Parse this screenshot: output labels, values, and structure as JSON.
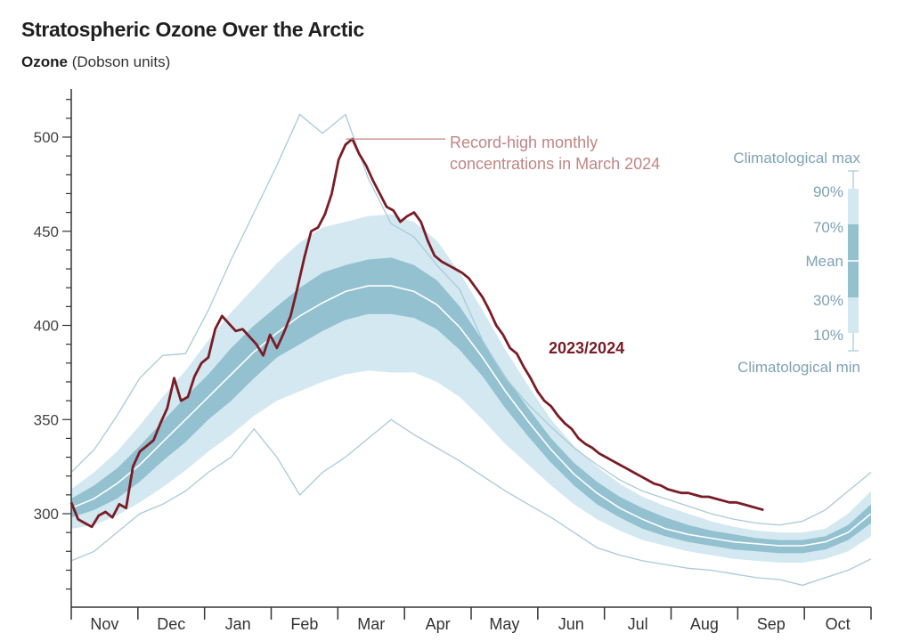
{
  "chart_data": {
    "type": "area",
    "title": "Stratospheric Ozone Over the Arctic",
    "ylabel_bold": "Ozone",
    "ylabel_unit": "(Dobson units)",
    "ylim": [
      255,
      525
    ],
    "y_ticks": [
      300,
      350,
      400,
      450,
      500
    ],
    "categories": [
      "Nov",
      "Dec",
      "Jan",
      "Feb",
      "Mar",
      "Apr",
      "May",
      "Jun",
      "Jul",
      "Aug",
      "Sep",
      "Oct"
    ],
    "x_day_range": [
      0,
      350
    ],
    "legend": {
      "max": "Climatological max",
      "p90": "90%",
      "p70": "70%",
      "mean": "Mean",
      "p30": "30%",
      "p10": "10%",
      "min": "Climatological min"
    },
    "annotation": {
      "line1": "Record-high monthly",
      "line2": "concentrations in March 2024",
      "x": 119,
      "y": 499
    },
    "series_label": "2023/2024",
    "colors": {
      "band_outer": "#d3e8f0",
      "band_inner": "#93c1d0",
      "mean_line": "#ffffff",
      "extreme_line": "#a9cbd8",
      "record_line": "#7a1c26",
      "annotation": "#c08585",
      "axis": "#333333"
    },
    "series": [
      {
        "name": "2023/2024",
        "x": [
          0,
          3,
          6,
          9,
          12,
          15,
          18,
          21,
          24,
          27,
          30,
          33,
          36,
          39,
          42,
          45,
          48,
          51,
          54,
          57,
          60,
          63,
          66,
          69,
          72,
          75,
          78,
          81,
          84,
          87,
          90,
          93,
          96,
          99,
          102,
          105,
          108,
          111,
          114,
          117,
          120,
          123,
          126,
          129,
          132,
          135,
          138,
          141,
          144,
          147,
          150,
          153,
          156,
          159,
          162,
          165,
          168,
          171,
          174,
          177,
          180,
          183,
          186,
          189,
          192,
          195,
          198,
          201,
          204,
          207,
          210,
          213,
          216,
          219,
          222,
          225,
          228,
          231,
          234,
          237,
          240,
          243,
          246,
          249,
          252,
          255,
          258,
          261,
          264,
          267,
          270,
          273,
          276,
          279,
          282,
          285,
          288,
          291,
          294,
          297,
          300,
          303
        ],
        "values": [
          306,
          297,
          295,
          293,
          299,
          301,
          298,
          305,
          303,
          325,
          333,
          336,
          339,
          348,
          356,
          372,
          360,
          362,
          373,
          380,
          383,
          398,
          405,
          401,
          397,
          398,
          394,
          390,
          384,
          395,
          388,
          396,
          405,
          420,
          436,
          450,
          452,
          459,
          470,
          488,
          496,
          499,
          491,
          485,
          477,
          470,
          463,
          461,
          455,
          458,
          460,
          455,
          445,
          437,
          434,
          432,
          430,
          428,
          425,
          420,
          415,
          408,
          400,
          395,
          388,
          385,
          378,
          372,
          365,
          360,
          357,
          352,
          348,
          345,
          340,
          337,
          335,
          332,
          330,
          328,
          326,
          324,
          322,
          320,
          318,
          316,
          315,
          313,
          312,
          311,
          311,
          310,
          309,
          309,
          308,
          307,
          306,
          306,
          305,
          304,
          303,
          302
        ]
      },
      {
        "name": "Climatological max",
        "x": [
          0,
          10,
          20,
          30,
          40,
          50,
          60,
          70,
          80,
          90,
          100,
          110,
          120,
          130,
          140,
          150,
          160,
          170,
          180,
          190,
          200,
          210,
          220,
          230,
          240,
          250,
          260,
          270,
          280,
          290,
          300,
          310,
          320,
          330,
          340,
          350
        ],
        "values": [
          322,
          334,
          352,
          372,
          384,
          385,
          408,
          435,
          460,
          485,
          512,
          502,
          512,
          478,
          454,
          447,
          432,
          419,
          392,
          372,
          358,
          346,
          335,
          326,
          318,
          312,
          308,
          304,
          300,
          297,
          295,
          294,
          296,
          302,
          312,
          322
        ]
      },
      {
        "name": "90%",
        "x": [
          0,
          10,
          20,
          30,
          40,
          50,
          60,
          70,
          80,
          90,
          100,
          110,
          120,
          130,
          140,
          150,
          160,
          170,
          180,
          190,
          200,
          210,
          220,
          230,
          240,
          250,
          260,
          270,
          280,
          290,
          300,
          310,
          320,
          330,
          340,
          350
        ],
        "values": [
          313,
          322,
          333,
          347,
          362,
          376,
          392,
          407,
          420,
          433,
          444,
          452,
          455,
          458,
          459,
          455,
          445,
          428,
          408,
          387,
          368,
          350,
          336,
          325,
          316,
          309,
          304,
          300,
          296,
          293,
          291,
          290,
          290,
          292,
          300,
          312
        ]
      },
      {
        "name": "70%",
        "x": [
          0,
          10,
          20,
          30,
          40,
          50,
          60,
          70,
          80,
          90,
          100,
          110,
          120,
          130,
          140,
          150,
          160,
          170,
          180,
          190,
          200,
          210,
          220,
          230,
          240,
          250,
          260,
          270,
          280,
          290,
          300,
          310,
          320,
          330,
          340,
          350
        ],
        "values": [
          308,
          315,
          324,
          336,
          349,
          362,
          374,
          388,
          400,
          410,
          420,
          428,
          432,
          435,
          436,
          432,
          424,
          410,
          392,
          373,
          356,
          340,
          327,
          317,
          309,
          303,
          298,
          294,
          291,
          289,
          287,
          286,
          286,
          288,
          294,
          305
        ]
      },
      {
        "name": "Mean",
        "x": [
          0,
          10,
          20,
          30,
          40,
          50,
          60,
          70,
          80,
          90,
          100,
          110,
          120,
          130,
          140,
          150,
          160,
          170,
          180,
          190,
          200,
          210,
          220,
          230,
          240,
          250,
          260,
          270,
          280,
          290,
          300,
          310,
          320,
          330,
          340,
          350
        ],
        "values": [
          303,
          308,
          316,
          326,
          338,
          350,
          362,
          374,
          386,
          396,
          405,
          412,
          418,
          421,
          421,
          418,
          411,
          399,
          383,
          365,
          349,
          334,
          321,
          311,
          303,
          297,
          292,
          289,
          287,
          285,
          284,
          283,
          283,
          285,
          290,
          300
        ]
      },
      {
        "name": "30%",
        "x": [
          0,
          10,
          20,
          30,
          40,
          50,
          60,
          70,
          80,
          90,
          100,
          110,
          120,
          130,
          140,
          150,
          160,
          170,
          180,
          190,
          200,
          210,
          220,
          230,
          240,
          250,
          260,
          270,
          280,
          290,
          300,
          310,
          320,
          330,
          340,
          350
        ],
        "values": [
          298,
          302,
          308,
          317,
          328,
          338,
          350,
          360,
          372,
          383,
          390,
          397,
          403,
          406,
          406,
          404,
          398,
          387,
          373,
          356,
          341,
          327,
          315,
          305,
          298,
          292,
          288,
          285,
          283,
          281,
          280,
          279,
          279,
          281,
          286,
          295
        ]
      },
      {
        "name": "10%",
        "x": [
          0,
          10,
          20,
          30,
          40,
          50,
          60,
          70,
          80,
          90,
          100,
          110,
          120,
          130,
          140,
          150,
          160,
          170,
          180,
          190,
          200,
          210,
          220,
          230,
          240,
          250,
          260,
          270,
          280,
          290,
          300,
          310,
          320,
          330,
          340,
          350
        ],
        "values": [
          292,
          294,
          299,
          306,
          314,
          323,
          333,
          342,
          352,
          360,
          365,
          370,
          374,
          376,
          375,
          375,
          370,
          362,
          350,
          337,
          326,
          315,
          305,
          297,
          291,
          286,
          283,
          280,
          278,
          276,
          275,
          274,
          274,
          276,
          280,
          288
        ]
      },
      {
        "name": "Climatological min",
        "x": [
          0,
          10,
          20,
          30,
          40,
          50,
          60,
          70,
          80,
          90,
          100,
          110,
          120,
          130,
          140,
          150,
          160,
          170,
          180,
          190,
          200,
          210,
          220,
          230,
          240,
          250,
          260,
          270,
          280,
          290,
          300,
          310,
          320,
          330,
          340,
          350
        ],
        "values": [
          275,
          280,
          290,
          300,
          305,
          312,
          322,
          330,
          345,
          330,
          310,
          322,
          330,
          340,
          350,
          342,
          335,
          328,
          320,
          312,
          305,
          298,
          290,
          282,
          278,
          275,
          273,
          271,
          270,
          268,
          266,
          265,
          262,
          266,
          270,
          276
        ]
      }
    ]
  }
}
